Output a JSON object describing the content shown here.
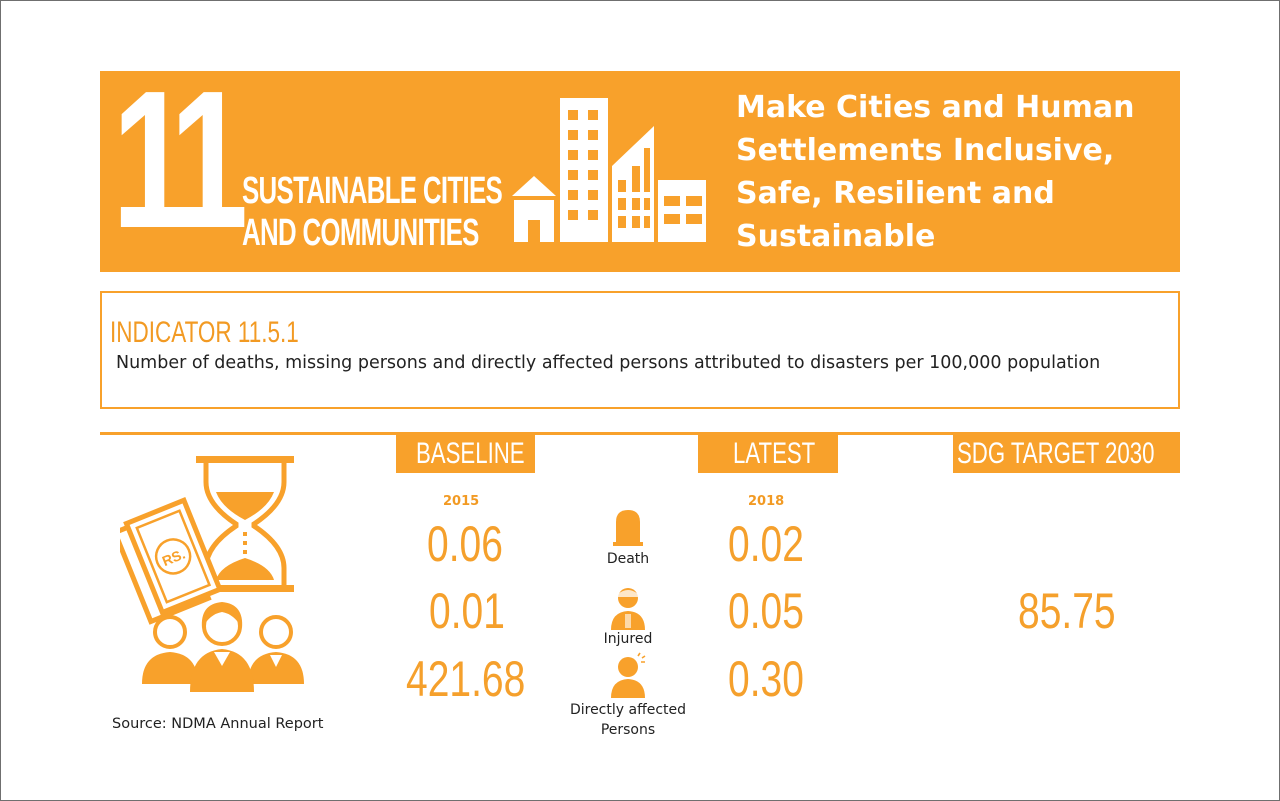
{
  "colors": {
    "accent": "#f8a12b",
    "text": "#222222",
    "value": "#f5a02c"
  },
  "goal": {
    "number": "11",
    "name_line1": "SUSTAINABLE CITIES",
    "name_line2": "AND COMMUNITIES",
    "title_lines": [
      "Make Cities and Human",
      "Settlements Inclusive,",
      "Safe, Resilient and",
      "Sustainable"
    ],
    "icon": "city-buildings-icon"
  },
  "indicator": {
    "label": "INDICATOR 11.5.1",
    "description": "Number of deaths, missing persons and directly affected persons attributed to disasters per 100,000 population"
  },
  "headers": {
    "baseline": "BASELINE",
    "latest": "LATEST",
    "target": "SDG TARGET  2030"
  },
  "baseline": {
    "year": "2015",
    "values": [
      "0.06",
      "0.01",
      "421.68"
    ]
  },
  "latest": {
    "year": "2018",
    "values": [
      "0.02",
      "0.05",
      "0.30"
    ]
  },
  "categories": [
    {
      "label": "Death",
      "icon": "tombstone-icon"
    },
    {
      "label": "Injured",
      "icon": "injured-person-icon"
    },
    {
      "label_line1": "Directly affected",
      "label_line2": "Persons",
      "icon": "affected-person-icon"
    }
  ],
  "target": {
    "value": "85.75"
  },
  "illustration": {
    "icons": [
      "hourglass-icon",
      "money-notes-icon",
      "people-group-icon"
    ],
    "money_text": "RS."
  },
  "source": "Source: NDMA Annual Report"
}
